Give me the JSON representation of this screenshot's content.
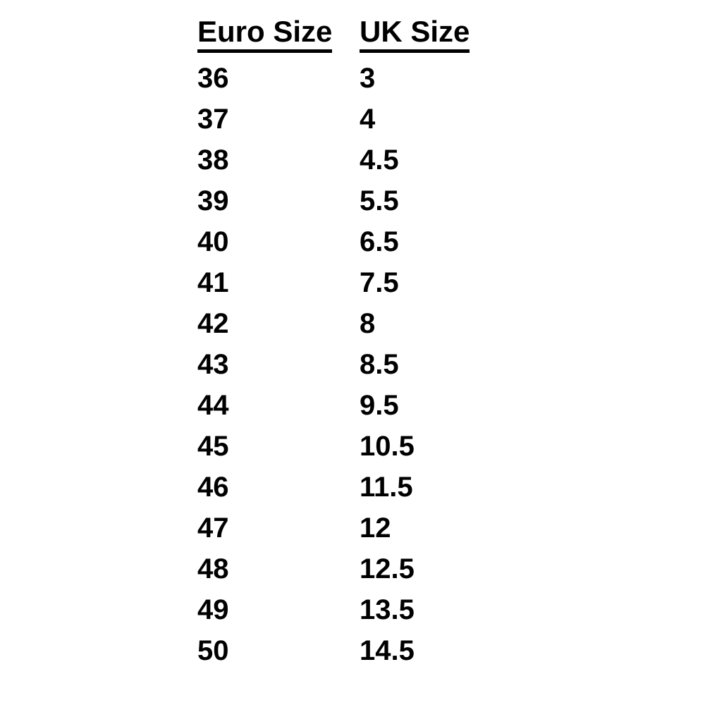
{
  "colors": {
    "text": "#000000",
    "background": "#ffffff",
    "header_underline": "#000000"
  },
  "chart_data": {
    "type": "table",
    "title": "",
    "columns": [
      "Euro Size",
      "UK Size"
    ],
    "rows": [
      [
        "36",
        "3"
      ],
      [
        "37",
        "4"
      ],
      [
        "38",
        "4.5"
      ],
      [
        "39",
        "5.5"
      ],
      [
        "40",
        "6.5"
      ],
      [
        "41",
        "7.5"
      ],
      [
        "42",
        "8"
      ],
      [
        "43",
        "8.5"
      ],
      [
        "44",
        "9.5"
      ],
      [
        "45",
        "10.5"
      ],
      [
        "46",
        "11.5"
      ],
      [
        "47",
        "12"
      ],
      [
        "48",
        "12.5"
      ],
      [
        "49",
        "13.5"
      ],
      [
        "50",
        "14.5"
      ]
    ]
  }
}
